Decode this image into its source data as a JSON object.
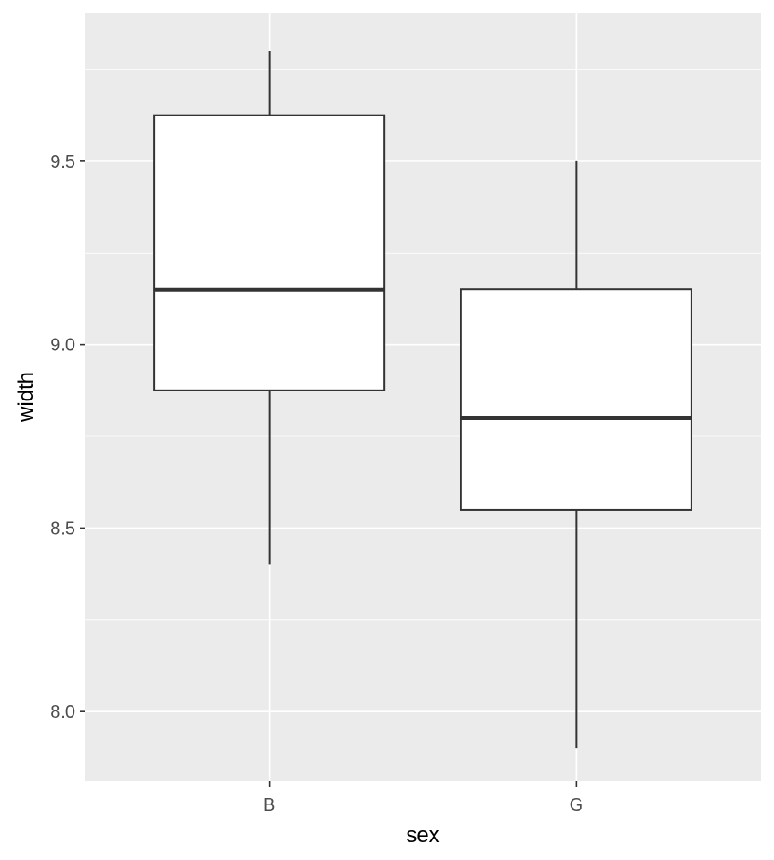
{
  "chart_data": {
    "type": "boxplot",
    "xlabel": "sex",
    "ylabel": "width",
    "categories": [
      "B",
      "G"
    ],
    "boxes": [
      {
        "category": "B",
        "whisker_low": 8.4,
        "q1": 8.875,
        "median": 9.15,
        "q3": 9.625,
        "whisker_high": 9.8
      },
      {
        "category": "G",
        "whisker_low": 7.9,
        "q1": 8.55,
        "median": 8.8,
        "q3": 9.15,
        "whisker_high": 9.5
      }
    ],
    "ylim": [
      7.81,
      9.905
    ],
    "y_ticks": [
      8.0,
      8.5,
      9.0,
      9.5
    ],
    "y_tick_labels": [
      "8.0",
      "8.5",
      "9.0",
      "9.5"
    ],
    "grid": true,
    "colors": {
      "panel_background": "#ebebeb",
      "grid_major": "#ffffff",
      "box_fill": "#ffffff",
      "box_stroke": "#333333",
      "tick_text": "#4d4d4d"
    }
  }
}
